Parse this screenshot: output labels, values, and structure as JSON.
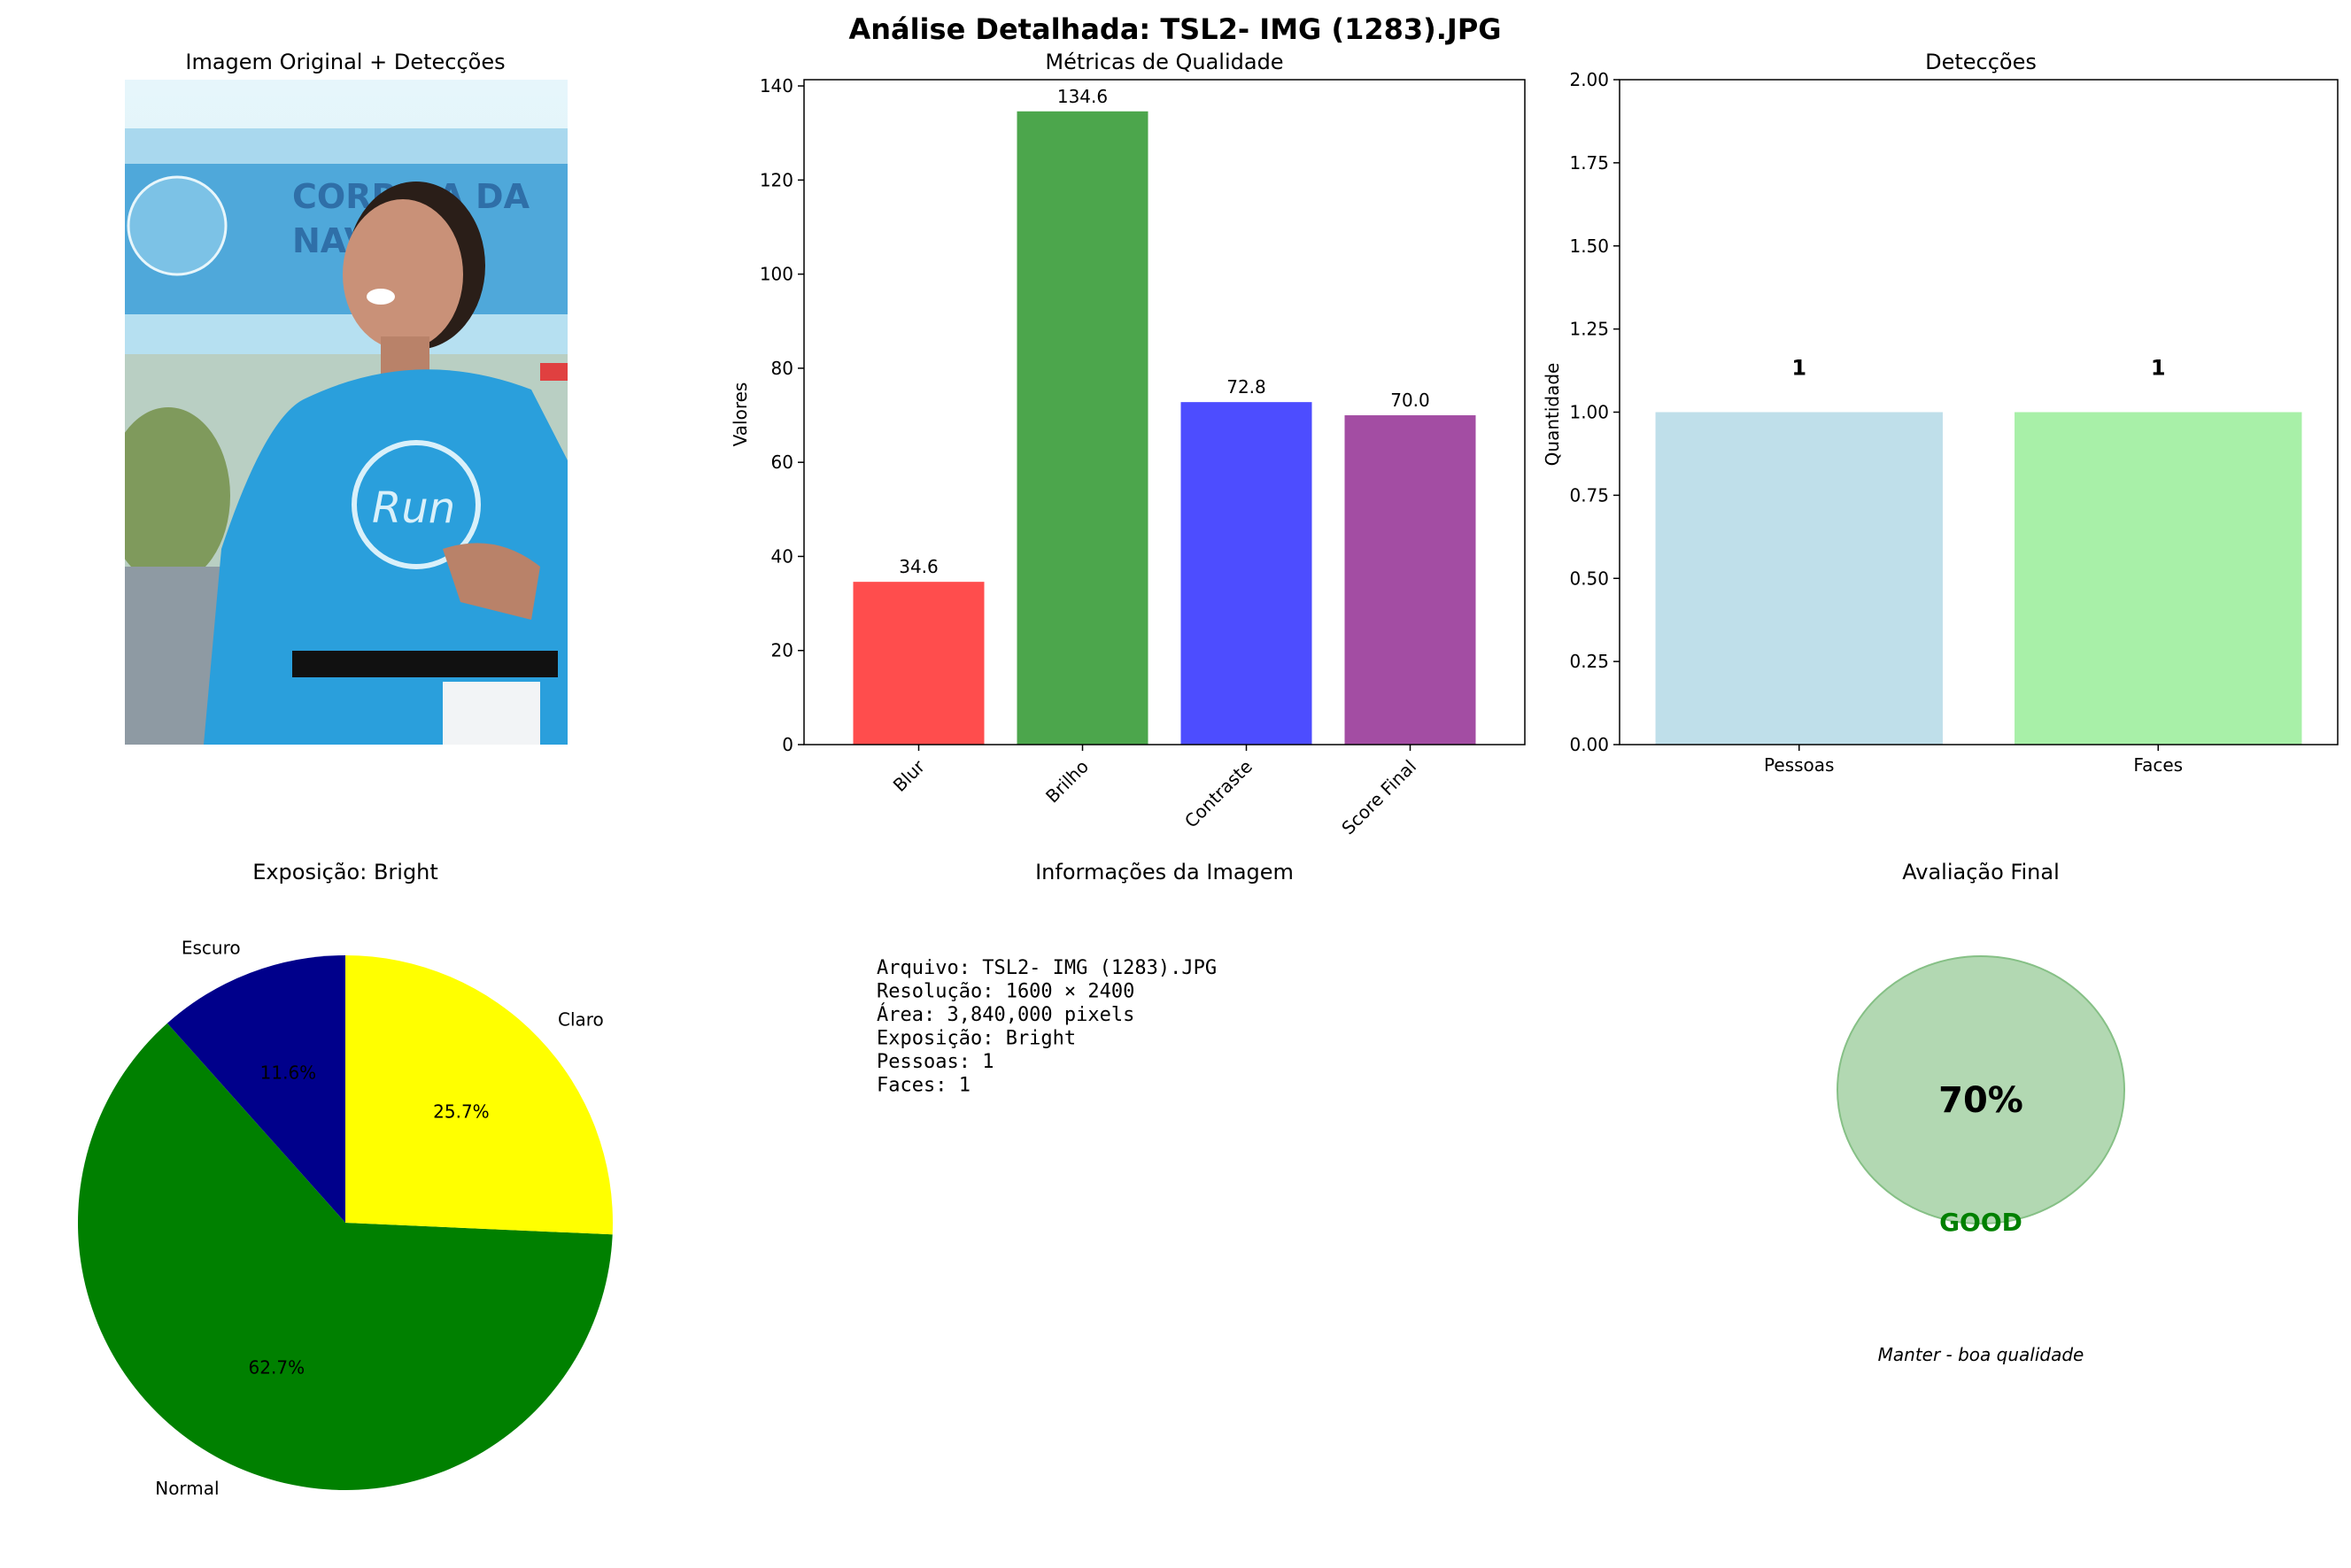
{
  "suptitle": "Análise Detalhada: TSL2- IMG  (1283).JPG",
  "panels": {
    "image": {
      "title": "Imagem Original + Detecções"
    },
    "info": {
      "title": "Informações da Imagem",
      "lines": [
        "Arquivo: TSL2- IMG  (1283).JPG",
        "Resolução: 1600 × 2400",
        "Área: 3,840,000 pixels",
        "Exposição: Bright",
        "Pessoas: 1",
        "Faces: 1"
      ]
    },
    "final": {
      "title": "Avaliação Final",
      "score_label": "70%",
      "score_value": 0.7,
      "grade": "GOOD",
      "recommendation": "Manter - boa qualidade",
      "circle_color": "#b2d8b2",
      "grade_color": "#008000"
    }
  },
  "chart_data": [
    {
      "type": "bar",
      "title": "Métricas de Qualidade",
      "xlabel": "",
      "ylabel": "Valores",
      "categories": [
        "Blur",
        "Brilho",
        "Contraste",
        "Score Final"
      ],
      "values": [
        34.6,
        134.6,
        72.8,
        70.0
      ],
      "value_labels": [
        "34.6",
        "134.6",
        "72.8",
        "70.0"
      ],
      "colors": [
        "#ff4d4d",
        "#4ca64c",
        "#4d4dff",
        "#a34da3"
      ],
      "ylim": [
        0,
        141.33
      ],
      "yticks": [
        0,
        20,
        40,
        60,
        80,
        100,
        120,
        140
      ],
      "tick_rotation": 45
    },
    {
      "type": "bar",
      "title": "Detecções",
      "xlabel": "",
      "ylabel": "Quantidade",
      "categories": [
        "Pessoas",
        "Faces"
      ],
      "values": [
        1,
        1
      ],
      "value_labels": [
        "1",
        "1"
      ],
      "colors": [
        "#bfdfea",
        "#a8f0a8"
      ],
      "ylim": [
        0,
        2
      ],
      "yticks": [
        "0.00",
        "0.25",
        "0.50",
        "0.75",
        "1.00",
        "1.25",
        "1.50",
        "1.75",
        "2.00"
      ]
    },
    {
      "type": "pie",
      "title": "Exposição: Bright",
      "labels": [
        "Escuro",
        "Normal",
        "Claro"
      ],
      "values": [
        11.6,
        62.7,
        25.7
      ],
      "pct_labels": [
        "11.6%",
        "62.7%",
        "25.7%"
      ],
      "colors": [
        "#00008b",
        "#008000",
        "#ffff00"
      ],
      "start_angle": 90
    }
  ]
}
